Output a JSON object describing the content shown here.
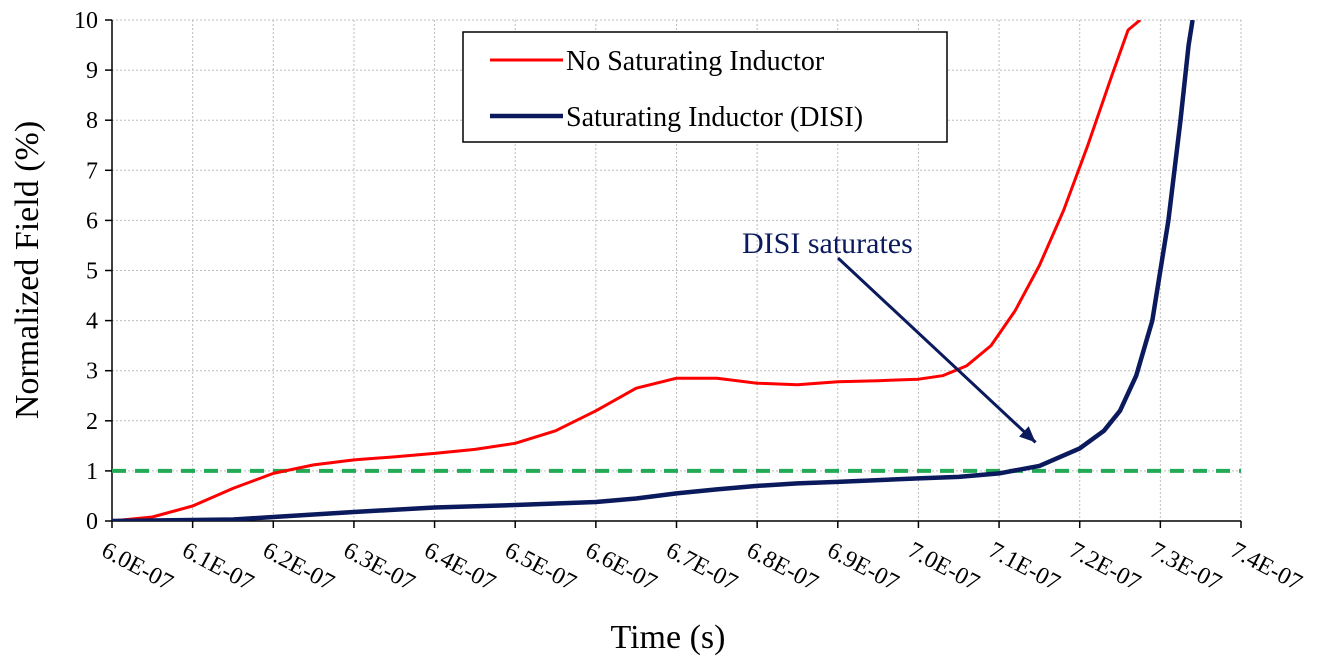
{
  "chart_data": {
    "type": "line",
    "title": "",
    "xlabel": "Time (s)",
    "ylabel": "Normalized Field (%)",
    "xlim": [
      6e-07,
      7.4e-07
    ],
    "ylim": [
      0,
      10
    ],
    "grid": true,
    "x_ticks": [
      "6.0E-07",
      "6.1E-07",
      "6.2E-07",
      "6.3E-07",
      "6.4E-07",
      "6.5E-07",
      "6.6E-07",
      "6.7E-07",
      "6.8E-07",
      "6.9E-07",
      "7.0E-07",
      "7.1E-07",
      "7.2E-07",
      "7.3E-07",
      "7.4E-07"
    ],
    "y_ticks": [
      "0",
      "1",
      "2",
      "3",
      "4",
      "5",
      "6",
      "7",
      "8",
      "9",
      "10"
    ],
    "legend_position": "top-center",
    "series": [
      {
        "name": "No Saturating Inductor",
        "color": "#ff0000",
        "x": [
          6e-07,
          6.05e-07,
          6.1e-07,
          6.15e-07,
          6.2e-07,
          6.25e-07,
          6.3e-07,
          6.35e-07,
          6.4e-07,
          6.45e-07,
          6.5e-07,
          6.55e-07,
          6.6e-07,
          6.65e-07,
          6.7e-07,
          6.75e-07,
          6.8e-07,
          6.85e-07,
          6.9e-07,
          6.95e-07,
          7e-07,
          7.03e-07,
          7.06e-07,
          7.09e-07,
          7.12e-07,
          7.15e-07,
          7.18e-07,
          7.21e-07,
          7.24e-07,
          7.26e-07,
          7.275e-07
        ],
        "y": [
          0,
          0.08,
          0.3,
          0.65,
          0.95,
          1.12,
          1.22,
          1.28,
          1.35,
          1.43,
          1.55,
          1.8,
          2.2,
          2.65,
          2.85,
          2.85,
          2.75,
          2.72,
          2.78,
          2.8,
          2.83,
          2.9,
          3.1,
          3.5,
          4.2,
          5.1,
          6.2,
          7.5,
          8.9,
          9.8,
          10
        ]
      },
      {
        "name": "Saturating Inductor (DISI)",
        "color": "#0a1a5c",
        "x": [
          6e-07,
          6.05e-07,
          6.1e-07,
          6.15e-07,
          6.2e-07,
          6.3e-07,
          6.4e-07,
          6.5e-07,
          6.6e-07,
          6.65e-07,
          6.7e-07,
          6.75e-07,
          6.8e-07,
          6.85e-07,
          6.9e-07,
          7e-07,
          7.05e-07,
          7.1e-07,
          7.15e-07,
          7.2e-07,
          7.23e-07,
          7.25e-07,
          7.27e-07,
          7.29e-07,
          7.31e-07,
          7.325e-07,
          7.335e-07,
          7.34e-07
        ],
        "y": [
          0,
          0.01,
          0.02,
          0.03,
          0.08,
          0.18,
          0.27,
          0.32,
          0.38,
          0.45,
          0.55,
          0.63,
          0.7,
          0.75,
          0.78,
          0.85,
          0.88,
          0.95,
          1.1,
          1.45,
          1.8,
          2.2,
          2.9,
          4.0,
          6.0,
          8.0,
          9.5,
          10
        ]
      }
    ],
    "reference_line": {
      "y": 1,
      "color": "#22aa55",
      "style": "dashed"
    },
    "annotation": {
      "text": "DISI saturates",
      "arrow_to": [
        7.18e-07,
        1.45
      ],
      "color": "#0a1a5c"
    }
  }
}
